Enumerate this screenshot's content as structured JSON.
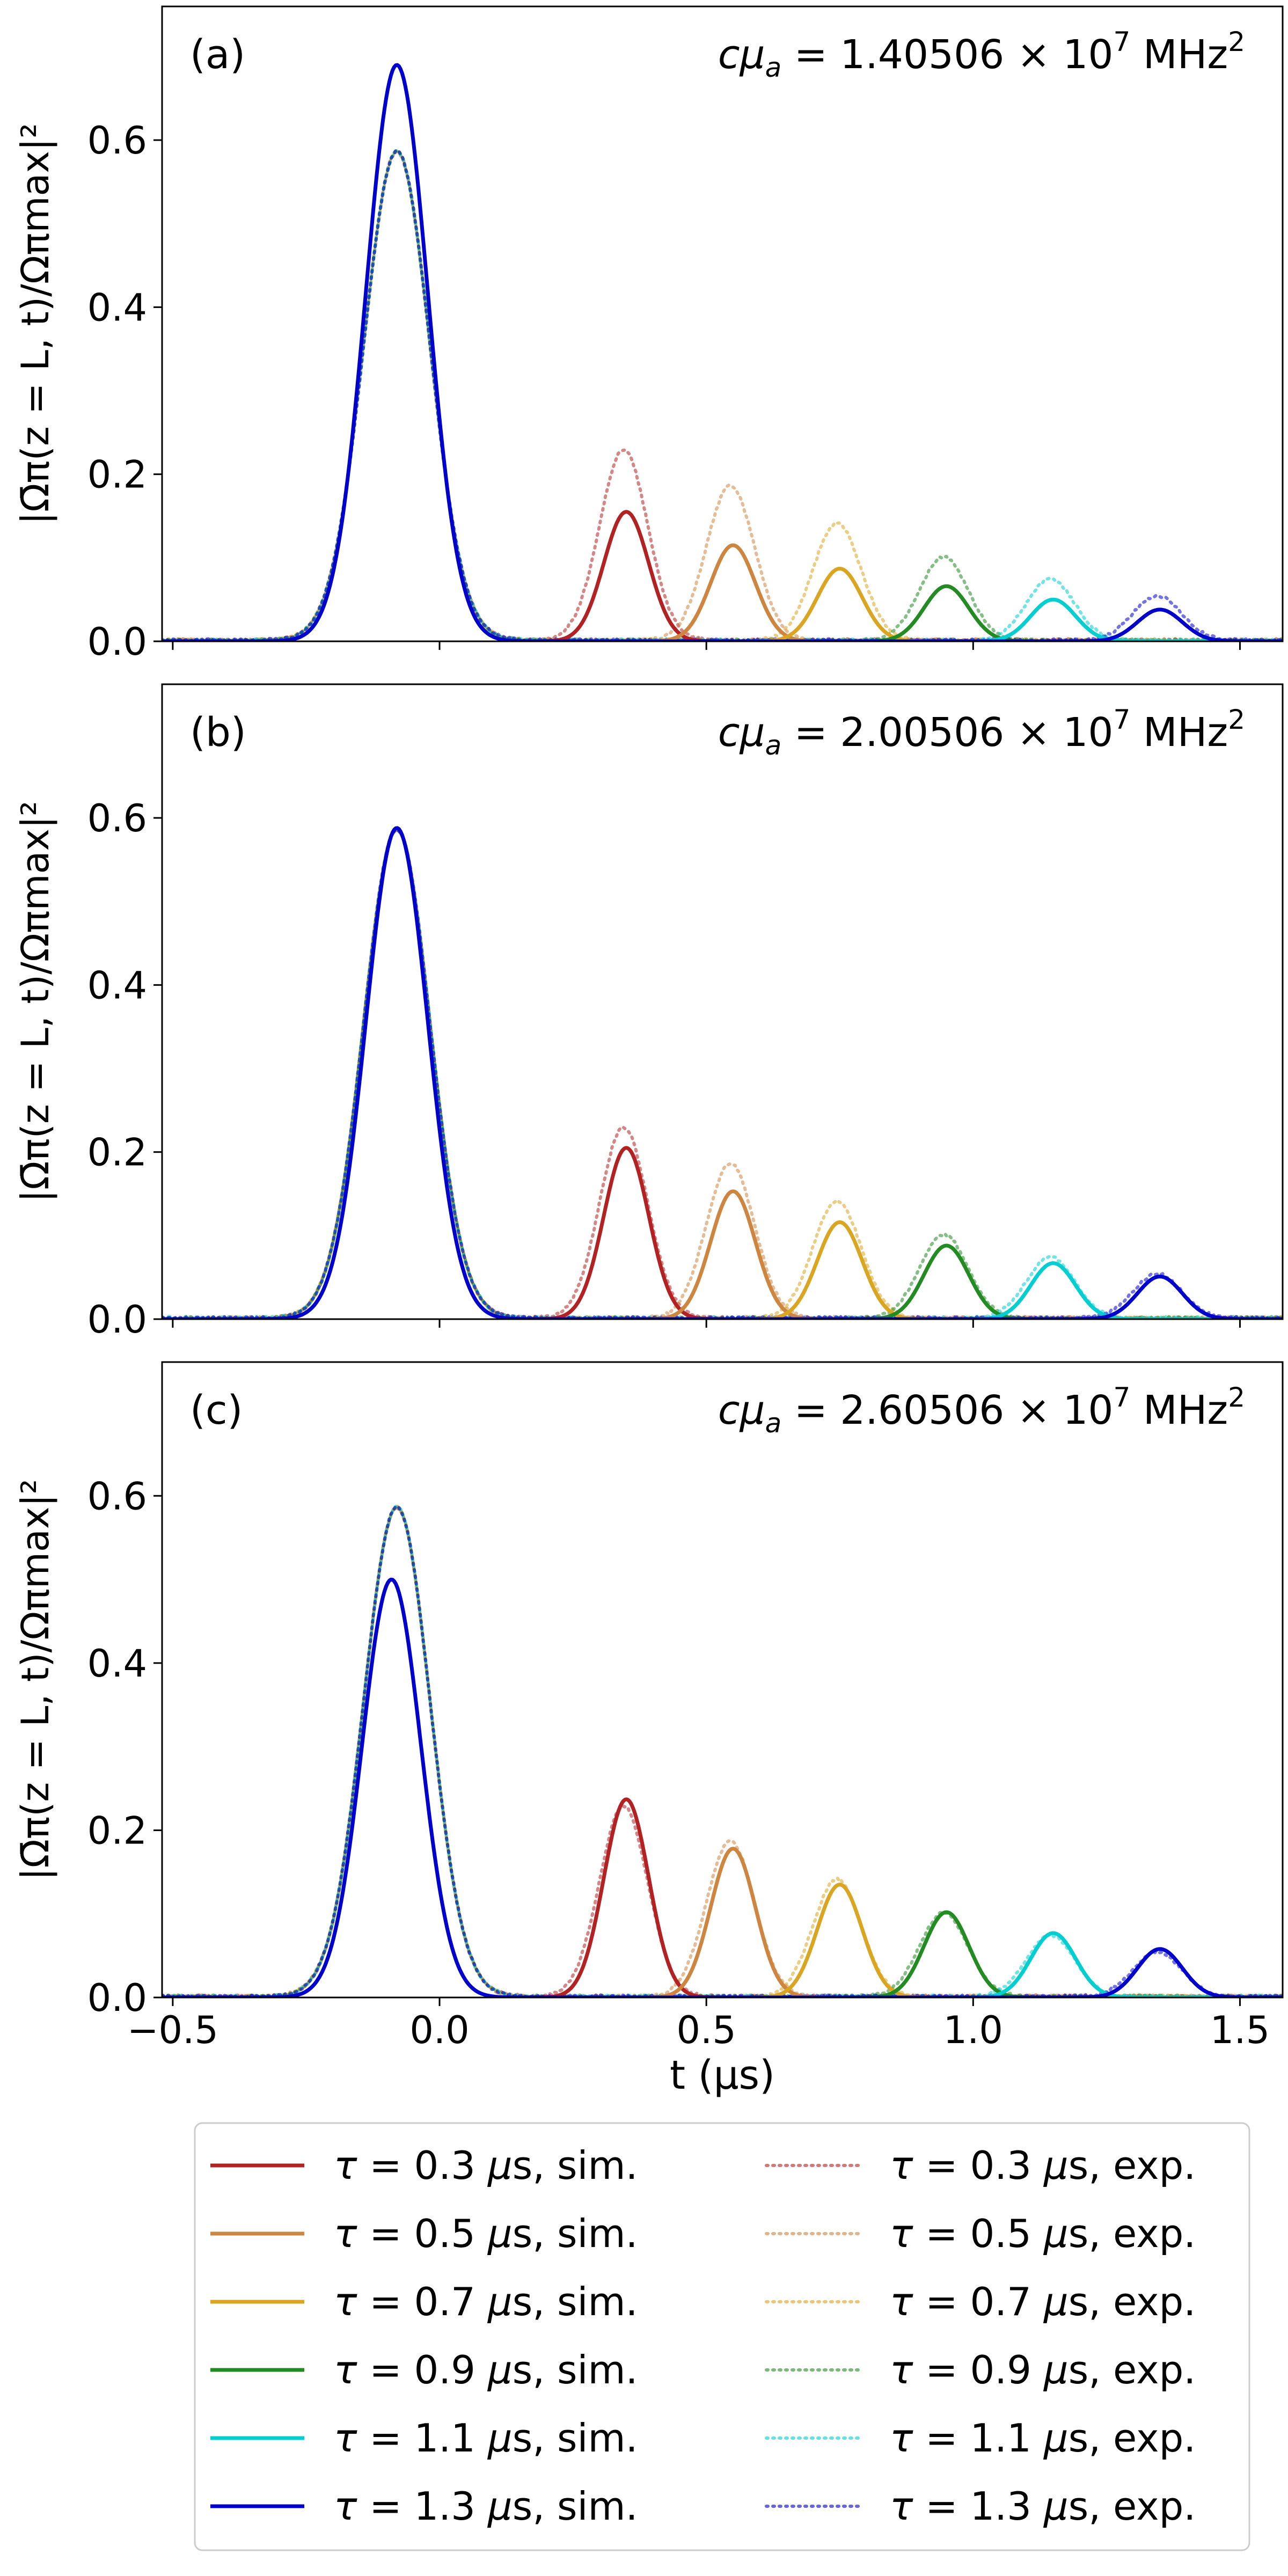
{
  "chart_data": [
    {
      "type": "line",
      "panel_label": "(a)",
      "annotation": {
        "lhs": "cμ",
        "sub": "a",
        "mid": " = 1.40506 × 10",
        "exp": "7",
        "unit": " MHz",
        "unit_exp": "2"
      },
      "ylabel": "|Ω̄π(z = L, t)/Ωπmax|²",
      "xlim": [
        -0.52,
        1.58
      ],
      "ylim": [
        0.0,
        0.76
      ],
      "yticks": [
        "0.0",
        "0.2",
        "0.4",
        "0.6"
      ],
      "series": [
        {
          "name": "τ = 0.3 μs, sim.",
          "kind": "sim",
          "color": "#b22222",
          "peaks": [
            {
              "x": 0.35,
              "y": 0.155,
              "w": 0.042
            }
          ],
          "x_start": 0.15
        },
        {
          "name": "τ = 0.5 μs, sim.",
          "kind": "sim",
          "color": "#cd853f",
          "peaks": [
            {
              "x": 0.55,
              "y": 0.115,
              "w": 0.042
            }
          ],
          "x_start": 0.35
        },
        {
          "name": "τ = 0.7 μs, sim.",
          "kind": "sim",
          "color": "#daa520",
          "peaks": [
            {
              "x": 0.75,
              "y": 0.087,
              "w": 0.042
            }
          ],
          "x_start": 0.55
        },
        {
          "name": "τ = 0.9 μs, sim.",
          "kind": "sim",
          "color": "#228b22",
          "peaks": [
            {
              "x": 0.95,
              "y": 0.066,
              "w": 0.042
            }
          ],
          "x_start": 0.75
        },
        {
          "name": "τ = 1.1 μs, sim.",
          "kind": "sim",
          "color": "#00ced1",
          "peaks": [
            {
              "x": 1.15,
              "y": 0.05,
              "w": 0.042
            }
          ],
          "x_start": 0.95
        },
        {
          "name": "τ = 1.3 μs, sim.",
          "kind": "sim",
          "color": "#0000cd",
          "peaks": [
            {
              "x": -0.08,
              "y": 0.69,
              "w": 0.058
            },
            {
              "x": 1.35,
              "y": 0.038,
              "w": 0.042
            }
          ],
          "x_start": -0.52
        },
        {
          "name": "τ = 0.3 μs, exp.",
          "kind": "exp",
          "color": "#b22222",
          "peaks": [
            {
              "x": -0.08,
              "y": 0.585,
              "w": 0.062
            },
            {
              "x": 0.345,
              "y": 0.228,
              "w": 0.045
            }
          ]
        },
        {
          "name": "τ = 0.5 μs, exp.",
          "kind": "exp",
          "color": "#cd853f",
          "peaks": [
            {
              "x": -0.08,
              "y": 0.585,
              "w": 0.062
            },
            {
              "x": 0.545,
              "y": 0.185,
              "w": 0.045
            }
          ]
        },
        {
          "name": "τ = 0.7 μs, exp.",
          "kind": "exp",
          "color": "#daa520",
          "peaks": [
            {
              "x": -0.08,
              "y": 0.585,
              "w": 0.062
            },
            {
              "x": 0.745,
              "y": 0.14,
              "w": 0.045
            }
          ]
        },
        {
          "name": "τ = 0.9 μs, exp.",
          "kind": "exp",
          "color": "#228b22",
          "peaks": [
            {
              "x": -0.08,
              "y": 0.585,
              "w": 0.062
            },
            {
              "x": 0.945,
              "y": 0.1,
              "w": 0.045
            }
          ]
        },
        {
          "name": "τ = 1.1 μs, exp.",
          "kind": "exp",
          "color": "#00ced1",
          "peaks": [
            {
              "x": -0.08,
              "y": 0.585,
              "w": 0.062
            },
            {
              "x": 1.145,
              "y": 0.073,
              "w": 0.045
            }
          ]
        },
        {
          "name": "τ = 1.3 μs, exp.",
          "kind": "exp",
          "color": "#0000cd",
          "peaks": [
            {
              "x": -0.08,
              "y": 0.585,
              "w": 0.062
            },
            {
              "x": 1.345,
              "y": 0.053,
              "w": 0.045
            }
          ]
        }
      ]
    },
    {
      "type": "line",
      "panel_label": "(b)",
      "annotation": {
        "lhs": "cμ",
        "sub": "a",
        "mid": " = 2.00506 × 10",
        "exp": "7",
        "unit": " MHz",
        "unit_exp": "2"
      },
      "ylabel": "|Ω̄π(z = L, t)/Ωπmax|²",
      "xlim": [
        -0.52,
        1.58
      ],
      "ylim": [
        0.0,
        0.76
      ],
      "yticks": [
        "0.0",
        "0.2",
        "0.4",
        "0.6"
      ],
      "series": [
        {
          "name": "τ = 0.3 μs, sim.",
          "kind": "sim",
          "color": "#b22222",
          "peaks": [
            {
              "x": 0.35,
              "y": 0.205,
              "w": 0.042
            }
          ],
          "x_start": 0.15
        },
        {
          "name": "τ = 0.5 μs, sim.",
          "kind": "sim",
          "color": "#cd853f",
          "peaks": [
            {
              "x": 0.55,
              "y": 0.153,
              "w": 0.042
            }
          ],
          "x_start": 0.35
        },
        {
          "name": "τ = 0.7 μs, sim.",
          "kind": "sim",
          "color": "#daa520",
          "peaks": [
            {
              "x": 0.75,
              "y": 0.116,
              "w": 0.042
            }
          ],
          "x_start": 0.55
        },
        {
          "name": "τ = 0.9 μs, sim.",
          "kind": "sim",
          "color": "#228b22",
          "peaks": [
            {
              "x": 0.95,
              "y": 0.088,
              "w": 0.042
            }
          ],
          "x_start": 0.75
        },
        {
          "name": "τ = 1.1 μs, sim.",
          "kind": "sim",
          "color": "#00ced1",
          "peaks": [
            {
              "x": 1.15,
              "y": 0.067,
              "w": 0.042
            }
          ],
          "x_start": 0.95
        },
        {
          "name": "τ = 1.3 μs, sim.",
          "kind": "sim",
          "color": "#0000cd",
          "peaks": [
            {
              "x": -0.08,
              "y": 0.588,
              "w": 0.058
            },
            {
              "x": 1.35,
              "y": 0.051,
              "w": 0.042
            }
          ],
          "x_start": -0.52
        },
        {
          "name": "τ = 0.3 μs, exp.",
          "kind": "exp",
          "color": "#b22222",
          "peaks": [
            {
              "x": -0.08,
              "y": 0.585,
              "w": 0.062
            },
            {
              "x": 0.345,
              "y": 0.228,
              "w": 0.045
            }
          ]
        },
        {
          "name": "τ = 0.5 μs, exp.",
          "kind": "exp",
          "color": "#cd853f",
          "peaks": [
            {
              "x": -0.08,
              "y": 0.585,
              "w": 0.062
            },
            {
              "x": 0.545,
              "y": 0.185,
              "w": 0.045
            }
          ]
        },
        {
          "name": "τ = 0.7 μs, exp.",
          "kind": "exp",
          "color": "#daa520",
          "peaks": [
            {
              "x": -0.08,
              "y": 0.585,
              "w": 0.062
            },
            {
              "x": 0.745,
              "y": 0.14,
              "w": 0.045
            }
          ]
        },
        {
          "name": "τ = 0.9 μs, exp.",
          "kind": "exp",
          "color": "#228b22",
          "peaks": [
            {
              "x": -0.08,
              "y": 0.585,
              "w": 0.062
            },
            {
              "x": 0.945,
              "y": 0.1,
              "w": 0.045
            }
          ]
        },
        {
          "name": "τ = 1.1 μs, exp.",
          "kind": "exp",
          "color": "#00ced1",
          "peaks": [
            {
              "x": -0.08,
              "y": 0.585,
              "w": 0.062
            },
            {
              "x": 1.145,
              "y": 0.073,
              "w": 0.045
            }
          ]
        },
        {
          "name": "τ = 1.3 μs, exp.",
          "kind": "exp",
          "color": "#0000cd",
          "peaks": [
            {
              "x": -0.08,
              "y": 0.585,
              "w": 0.062
            },
            {
              "x": 1.345,
              "y": 0.053,
              "w": 0.045
            }
          ]
        }
      ]
    },
    {
      "type": "line",
      "panel_label": "(c)",
      "annotation": {
        "lhs": "cμ",
        "sub": "a",
        "mid": " = 2.60506 × 10",
        "exp": "7",
        "unit": " MHz",
        "unit_exp": "2"
      },
      "ylabel": "|Ω̄π(z = L, t)/Ωπmax|²",
      "xlabel": "t (μs)",
      "xlim": [
        -0.52,
        1.58
      ],
      "ylim": [
        0.0,
        0.76
      ],
      "yticks": [
        "0.0",
        "0.2",
        "0.4",
        "0.6"
      ],
      "xticks": [
        "−0.5",
        "0.0",
        "0.5",
        "1.0",
        "1.5"
      ],
      "series": [
        {
          "name": "τ = 0.3 μs, sim.",
          "kind": "sim",
          "color": "#b22222",
          "peaks": [
            {
              "x": 0.35,
              "y": 0.237,
              "w": 0.042
            }
          ],
          "x_start": 0.15
        },
        {
          "name": "τ = 0.5 μs, sim.",
          "kind": "sim",
          "color": "#cd853f",
          "peaks": [
            {
              "x": 0.55,
              "y": 0.178,
              "w": 0.042
            }
          ],
          "x_start": 0.35
        },
        {
          "name": "τ = 0.7 μs, sim.",
          "kind": "sim",
          "color": "#daa520",
          "peaks": [
            {
              "x": 0.75,
              "y": 0.135,
              "w": 0.042
            }
          ],
          "x_start": 0.55
        },
        {
          "name": "τ = 0.9 μs, sim.",
          "kind": "sim",
          "color": "#228b22",
          "peaks": [
            {
              "x": 0.95,
              "y": 0.102,
              "w": 0.042
            }
          ],
          "x_start": 0.75
        },
        {
          "name": "τ = 1.1 μs, sim.",
          "kind": "sim",
          "color": "#00ced1",
          "peaks": [
            {
              "x": 1.15,
              "y": 0.077,
              "w": 0.042
            }
          ],
          "x_start": 0.95
        },
        {
          "name": "τ = 1.3 μs, sim.",
          "kind": "sim",
          "color": "#0000cd",
          "peaks": [
            {
              "x": -0.09,
              "y": 0.5,
              "w": 0.055
            },
            {
              "x": 1.35,
              "y": 0.058,
              "w": 0.042
            }
          ],
          "x_start": -0.52
        },
        {
          "name": "τ = 0.3 μs, exp.",
          "kind": "exp",
          "color": "#b22222",
          "peaks": [
            {
              "x": -0.08,
              "y": 0.585,
              "w": 0.062
            },
            {
              "x": 0.345,
              "y": 0.228,
              "w": 0.045
            }
          ]
        },
        {
          "name": "τ = 0.5 μs, exp.",
          "kind": "exp",
          "color": "#cd853f",
          "peaks": [
            {
              "x": -0.08,
              "y": 0.585,
              "w": 0.062
            },
            {
              "x": 0.545,
              "y": 0.185,
              "w": 0.045
            }
          ]
        },
        {
          "name": "τ = 0.7 μs, exp.",
          "kind": "exp",
          "color": "#daa520",
          "peaks": [
            {
              "x": -0.08,
              "y": 0.585,
              "w": 0.062
            },
            {
              "x": 0.745,
              "y": 0.14,
              "w": 0.045
            }
          ]
        },
        {
          "name": "τ = 0.9 μs, exp.",
          "kind": "exp",
          "color": "#228b22",
          "peaks": [
            {
              "x": -0.08,
              "y": 0.585,
              "w": 0.062
            },
            {
              "x": 0.945,
              "y": 0.1,
              "w": 0.045
            }
          ]
        },
        {
          "name": "τ = 1.1 μs, exp.",
          "kind": "exp",
          "color": "#00ced1",
          "peaks": [
            {
              "x": -0.08,
              "y": 0.585,
              "w": 0.062
            },
            {
              "x": 1.145,
              "y": 0.073,
              "w": 0.045
            }
          ]
        },
        {
          "name": "τ = 1.3 μs, exp.",
          "kind": "exp",
          "color": "#0000cd",
          "peaks": [
            {
              "x": -0.08,
              "y": 0.585,
              "w": 0.062
            },
            {
              "x": 1.345,
              "y": 0.053,
              "w": 0.045
            }
          ]
        }
      ]
    }
  ],
  "legend": {
    "placement": "bottom-center",
    "columns": 2,
    "entries": [
      {
        "tau": "0.3",
        "suffix": "sim.",
        "kind": "sim",
        "color": "#b22222"
      },
      {
        "tau": "0.5",
        "suffix": "sim.",
        "kind": "sim",
        "color": "#cd853f"
      },
      {
        "tau": "0.7",
        "suffix": "sim.",
        "kind": "sim",
        "color": "#daa520"
      },
      {
        "tau": "0.9",
        "suffix": "sim.",
        "kind": "sim",
        "color": "#228b22"
      },
      {
        "tau": "1.1",
        "suffix": "sim.",
        "kind": "sim",
        "color": "#00ced1"
      },
      {
        "tau": "1.3",
        "suffix": "sim.",
        "kind": "sim",
        "color": "#0000cd"
      },
      {
        "tau": "0.3",
        "suffix": "exp.",
        "kind": "exp",
        "color": "#b22222"
      },
      {
        "tau": "0.5",
        "suffix": "exp.",
        "kind": "exp",
        "color": "#cd853f"
      },
      {
        "tau": "0.7",
        "suffix": "exp.",
        "kind": "exp",
        "color": "#daa520"
      },
      {
        "tau": "0.9",
        "suffix": "exp.",
        "kind": "exp",
        "color": "#228b22"
      },
      {
        "tau": "1.1",
        "suffix": "exp.",
        "kind": "exp",
        "color": "#00ced1"
      },
      {
        "tau": "1.3",
        "suffix": "exp.",
        "kind": "exp",
        "color": "#0000cd"
      }
    ]
  }
}
